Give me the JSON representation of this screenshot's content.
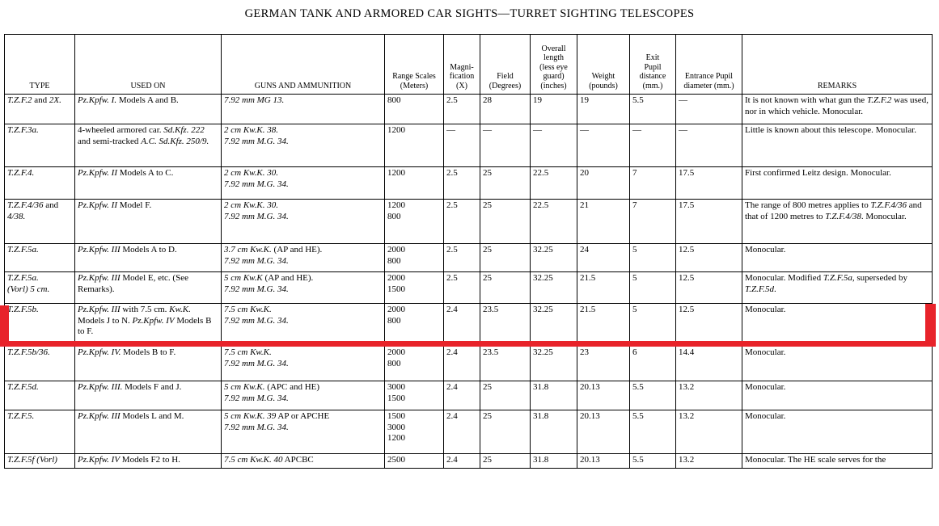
{
  "page": {
    "title": "GERMAN TANK AND ARMORED CAR SIGHTS—TURRET SIGHTING TELESCOPES"
  },
  "highlight": {
    "color": "#e8232a",
    "highlighted_type": "T.Z.F.5b."
  },
  "table": {
    "columns": [
      {
        "key": "type",
        "label": "TYPE"
      },
      {
        "key": "used_on",
        "label": "USED ON"
      },
      {
        "key": "guns",
        "label": "GUNS AND AMMUNITION"
      },
      {
        "key": "range",
        "label": "Range Scales\n(Meters)"
      },
      {
        "key": "mag",
        "label": "Magni-\nfication\n(X)"
      },
      {
        "key": "field",
        "label": "Field\n(Degrees)"
      },
      {
        "key": "length",
        "label": "Overall\nlength\n(less eye\nguard)\n(inches)"
      },
      {
        "key": "weight",
        "label": "Weight\n(pounds)"
      },
      {
        "key": "exit",
        "label": "Exit\nPupil\ndistance\n(mm.)"
      },
      {
        "key": "entrance",
        "label": "Entrance Pupil\ndiameter (mm.)"
      },
      {
        "key": "remarks",
        "label": "REMARKS"
      }
    ],
    "rows": [
      {
        "type": "*T.Z.F.2* and *2X.*",
        "used_on": "*Pz.Kpfw. I.* Models A and B.",
        "guns": "*7.92 mm MG 13.*",
        "range": "800",
        "mag": "2.5",
        "field": "28",
        "length": "19",
        "weight": "19",
        "exit": "5.5",
        "entrance": "—",
        "remarks": "It is not known with what gun the *T.Z.F.2* was used, nor in which vehicle. Monocular.",
        "highlighted": false
      },
      {
        "type": "*T.Z.F.3a.*",
        "used_on": "4-wheeled armored car. *Sd.Kfz. 222* and semi-tracked *A.C. Sd.Kfz. 250/9.*",
        "guns": "*2 cm Kw.K. 38.*\n*7.92 mm M.G. 34.*",
        "range": "1200",
        "mag": "—",
        "field": "—",
        "length": "—",
        "weight": "—",
        "exit": "—",
        "entrance": "—",
        "remarks": "Little is known about this telescope. Monocular.",
        "highlighted": false
      },
      {
        "type": "*T.Z.F.4.*",
        "used_on": "*Pz.Kpfw. II* Models A to C.",
        "guns": "*2 cm Kw.K. 30.*\n*7.92 mm M.G. 34.*",
        "range": "1200",
        "mag": "2.5",
        "field": "25",
        "length": "22.5",
        "weight": "20",
        "exit": "7",
        "entrance": "17.5",
        "remarks": "First confirmed Leitz design. Monocular.",
        "highlighted": false
      },
      {
        "type": "*T.Z.F.4/36* and *4/38.*",
        "used_on": "*Pz.Kpfw. II* Model F.",
        "guns": "*2 cm Kw.K. 30.*\n*7.92 mm M.G. 34.*",
        "range": "1200\n800",
        "mag": "2.5",
        "field": "25",
        "length": "22.5",
        "weight": "21",
        "exit": "7",
        "entrance": "17.5",
        "remarks": "The range of 800 metres applies to *T.Z.F.4/36* and that of 1200 metres to *T.Z.F.4/38*. Monocular.",
        "highlighted": false
      },
      {
        "type": "*T.Z.F.5a.*",
        "used_on": "*Pz.Kpfw. III* Models A to D.",
        "guns": "*3.7 cm Kw.K.* (AP and HE).\n*7.92 mm M.G. 34.*",
        "range": "2000\n800",
        "mag": "2.5",
        "field": "25",
        "length": "32.25",
        "weight": "24",
        "exit": "5",
        "entrance": "12.5",
        "remarks": "Monocular.",
        "highlighted": false
      },
      {
        "type": "*T.Z.F.5a.*\n*(Vorl) 5 cm.*",
        "used_on": "*Pz.Kpfw. III* Model E, etc. (See Remarks).",
        "guns": "*5 cm Kw.K* (AP and HE).\n*7.92 mm M.G. 34.*",
        "range": "2000\n1500",
        "mag": "2.5",
        "field": "25",
        "length": "32.25",
        "weight": "21.5",
        "exit": "5",
        "entrance": "12.5",
        "remarks": "Monocular. Modified *T.Z.F.5a*, superseded by *T.Z.F.5d*.",
        "highlighted": false
      },
      {
        "type": "*T.Z.F.5b.*",
        "used_on": "*Pz.Kpfw. III* with 7.5 cm. *Kw.K.* Models J to N. *Pz.Kpfw. IV* Models B to F.",
        "guns": "*7.5 cm Kw.K.*\n*7.92 mm M.G. 34.*",
        "range": "2000\n800",
        "mag": "2.4",
        "field": "23.5",
        "length": "32.25",
        "weight": "21.5",
        "exit": "5",
        "entrance": "12.5",
        "remarks": "Monocular.",
        "highlighted": true
      },
      {
        "type": "*T.Z.F.5b/36.*",
        "used_on": "*Pz.Kpfw. IV.* Models B to F.",
        "guns": "*7.5 cm Kw.K.*\n*7.92 mm M.G. 34.*",
        "range": "2000\n800",
        "mag": "2.4",
        "field": "23.5",
        "length": "32.25",
        "weight": "23",
        "exit": "6",
        "entrance": "14.4",
        "remarks": "Monocular.",
        "highlighted": false
      },
      {
        "type": "*T.Z.F.5d.*",
        "used_on": "*Pz.Kpfw. III.* Models F and J.",
        "guns": "*5 cm Kw.K.* (APC and HE)\n*7.92 mm M.G. 34.*",
        "range": "3000\n1500",
        "mag": "2.4",
        "field": "25",
        "length": "31.8",
        "weight": "20.13",
        "exit": "5.5",
        "entrance": "13.2",
        "remarks": "Monocular.",
        "highlighted": false
      },
      {
        "type": "*T.Z.F.5.*",
        "used_on": "*Pz.Kpfw. III* Models L and M.",
        "guns": "*5 cm Kw.K. 39* AP or APCHE\n*7.92 mm M.G. 34.*",
        "range": "1500\n3000\n1200",
        "mag": "2.4",
        "field": "25",
        "length": "31.8",
        "weight": "20.13",
        "exit": "5.5",
        "entrance": "13.2",
        "remarks": "Monocular.",
        "highlighted": false
      },
      {
        "type": "*T.Z.F.5f (Vorl)*",
        "used_on": "*Pz.Kpfw. IV* Models F2 to H.",
        "guns": "*7.5 cm Kw.K. 40* APCBC",
        "range": "2500",
        "mag": "2.4",
        "field": "25",
        "length": "31.8",
        "weight": "20.13",
        "exit": "5.5",
        "entrance": "13.2",
        "remarks": "Monocular. The HE scale serves for the",
        "highlighted": false
      }
    ]
  }
}
